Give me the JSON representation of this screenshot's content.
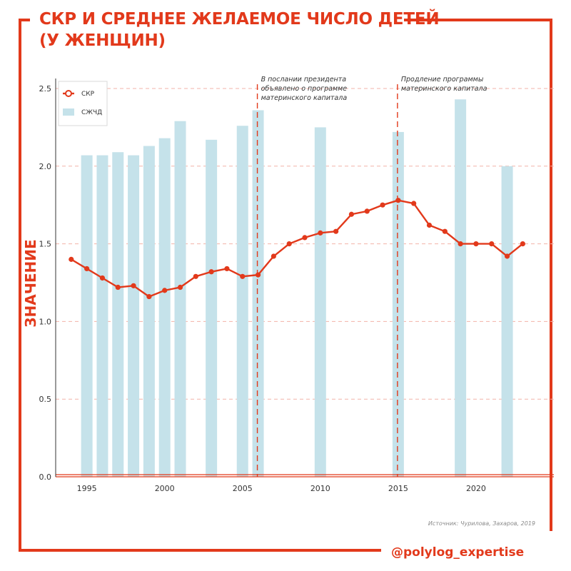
{
  "header": {
    "title": "СКР И  СРЕДНЕЕ ЖЕЛАЕМОЕ ЧИСЛО ДЕТЕЙ\n(У ЖЕНЩИН)"
  },
  "footer": {
    "source": "Источник: Чурилова, Захаров, 2019",
    "handle": "@polylog_expertise"
  },
  "colors": {
    "accent": "#e2391b",
    "bar": "#c5e2ea",
    "grid": "#f2b3a8",
    "axis": "#e2391b"
  },
  "chart_data": {
    "type": "bar+line",
    "title": "СКР И  СРЕДНЕЕ ЖЕЛАЕМОЕ ЧИСЛО ДЕТЕЙ (У ЖЕНЩИН)",
    "xlabel": "",
    "ylabel": "ЗНАЧЕНИЕ",
    "xlim": [
      1993,
      2025
    ],
    "ylim": [
      0,
      2.5
    ],
    "x_ticks": [
      {
        "value": 1995,
        "label": "1995"
      },
      {
        "value": 2000,
        "label": "2000"
      },
      {
        "value": 2005,
        "label": "2005"
      },
      {
        "value": 2010,
        "label": "2010"
      },
      {
        "value": 2015,
        "label": "2015"
      },
      {
        "value": 2020,
        "label": "2020"
      }
    ],
    "y_ticks": [
      {
        "value": 0,
        "label": "0.0"
      },
      {
        "value": 0.5,
        "label": "0.5"
      },
      {
        "value": 1.0,
        "label": "1.0"
      },
      {
        "value": 1.5,
        "label": "1.5"
      },
      {
        "value": 2.0,
        "label": "2.0"
      },
      {
        "value": 2.5,
        "label": "2.5"
      }
    ],
    "grid": "horizontal dashed",
    "legend_position": "top-left",
    "series": [
      {
        "name": "СКР",
        "type": "line",
        "color": "#e2391b",
        "points": [
          {
            "x": 1994,
            "y": 1.4
          },
          {
            "x": 1995,
            "y": 1.34
          },
          {
            "x": 1996,
            "y": 1.28
          },
          {
            "x": 1997,
            "y": 1.22
          },
          {
            "x": 1998,
            "y": 1.23
          },
          {
            "x": 1999,
            "y": 1.16
          },
          {
            "x": 2000,
            "y": 1.2
          },
          {
            "x": 2001,
            "y": 1.22
          },
          {
            "x": 2002,
            "y": 1.29
          },
          {
            "x": 2003,
            "y": 1.32
          },
          {
            "x": 2004,
            "y": 1.34
          },
          {
            "x": 2005,
            "y": 1.29
          },
          {
            "x": 2006,
            "y": 1.3
          },
          {
            "x": 2007,
            "y": 1.42
          },
          {
            "x": 2008,
            "y": 1.5
          },
          {
            "x": 2009,
            "y": 1.54
          },
          {
            "x": 2010,
            "y": 1.57
          },
          {
            "x": 2011,
            "y": 1.58
          },
          {
            "x": 2012,
            "y": 1.69
          },
          {
            "x": 2013,
            "y": 1.71
          },
          {
            "x": 2014,
            "y": 1.75
          },
          {
            "x": 2015,
            "y": 1.78
          },
          {
            "x": 2016,
            "y": 1.76
          },
          {
            "x": 2017,
            "y": 1.62
          },
          {
            "x": 2018,
            "y": 1.58
          },
          {
            "x": 2019,
            "y": 1.5
          },
          {
            "x": 2020,
            "y": 1.5
          },
          {
            "x": 2021,
            "y": 1.5
          },
          {
            "x": 2022,
            "y": 1.42
          },
          {
            "x": 2023,
            "y": 1.5
          }
        ]
      },
      {
        "name": "СЖЧД",
        "type": "bar",
        "color": "#c5e2ea",
        "points": [
          {
            "x": 1995,
            "y": 2.07
          },
          {
            "x": 1996,
            "y": 2.07
          },
          {
            "x": 1997,
            "y": 2.09
          },
          {
            "x": 1998,
            "y": 2.07
          },
          {
            "x": 1999,
            "y": 2.13
          },
          {
            "x": 2000,
            "y": 2.18
          },
          {
            "x": 2001,
            "y": 2.29
          },
          {
            "x": 2003,
            "y": 2.17
          },
          {
            "x": 2005,
            "y": 2.26
          },
          {
            "x": 2006,
            "y": 2.36
          },
          {
            "x": 2010,
            "y": 2.25
          },
          {
            "x": 2015,
            "y": 2.22
          },
          {
            "x": 2019,
            "y": 2.43
          },
          {
            "x": 2022,
            "y": 2.0
          }
        ]
      }
    ],
    "annotations": [
      {
        "x": 2006,
        "lines": [
          "В послании президента",
          "объявлено о программе",
          "материнского капитала"
        ]
      },
      {
        "x": 2015,
        "lines": [
          "Продление программы",
          "материнского капитала"
        ]
      }
    ]
  }
}
